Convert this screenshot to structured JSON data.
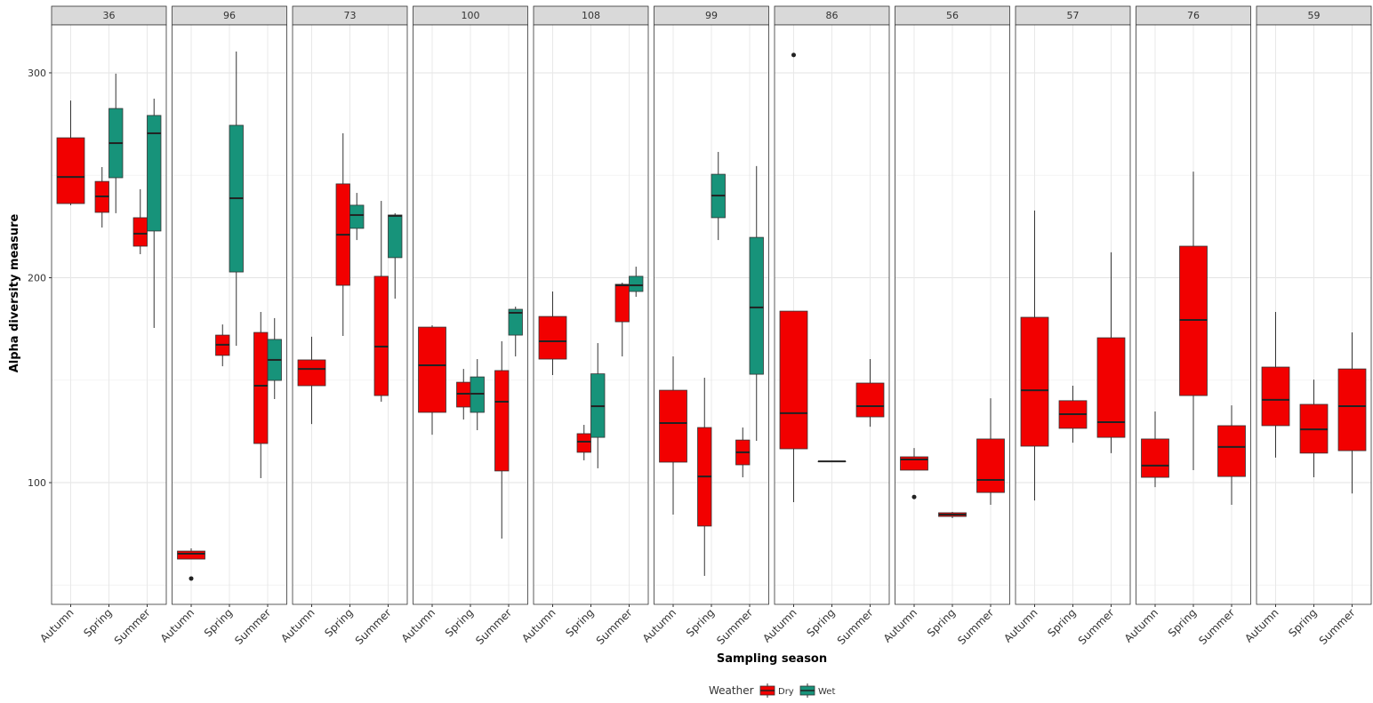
{
  "chart_data": {
    "type": "boxplot",
    "x_label": "Sampling season",
    "y_label": "Alpha diversity measure",
    "ylim": [
      40.6,
      323.4
    ],
    "yticks": [
      100,
      200,
      300
    ],
    "minor_yticks": [
      50,
      150,
      250
    ],
    "grid": true,
    "legend": {
      "title": "Weather",
      "position": "bottom",
      "series": [
        {
          "name": "Dry",
          "color": "#f20000"
        },
        {
          "name": "Wet",
          "color": "#17937a"
        }
      ]
    },
    "facets": [
      {
        "title": "36",
        "categories": [
          "Autumn",
          "Spring",
          "Summer"
        ],
        "boxes": [
          {
            "category": "Autumn",
            "weather": "Dry",
            "whisker_low": 235.4,
            "q1": 236.2,
            "median": 249.2,
            "q3": 268.3,
            "whisker_high": 286.5,
            "outliers": []
          },
          {
            "category": "Spring",
            "weather": "Dry",
            "whisker_low": 224.5,
            "q1": 231.9,
            "median": 239.7,
            "q3": 247,
            "whisker_high": 254,
            "outliers": []
          },
          {
            "category": "Spring",
            "weather": "Wet",
            "whisker_low": 231.5,
            "q1": 248.8,
            "median": 265.7,
            "q3": 282.6,
            "whisker_high": 299.6,
            "outliers": []
          },
          {
            "category": "Summer",
            "weather": "Dry",
            "whisker_low": 211.5,
            "q1": 215.4,
            "median": 221.5,
            "q3": 229.3,
            "whisker_high": 243.2,
            "outliers": []
          },
          {
            "category": "Summer",
            "weather": "Wet",
            "whisker_low": 175.5,
            "q1": 222.8,
            "median": 270.5,
            "q3": 279.2,
            "whisker_high": 287.4,
            "outliers": []
          }
        ]
      },
      {
        "title": "96",
        "categories": [
          "Autumn",
          "Spring",
          "Summer"
        ],
        "boxes": [
          {
            "category": "Autumn",
            "weather": "Dry",
            "whisker_low": 62.7,
            "q1": 62.7,
            "median": 65.3,
            "q3": 66.6,
            "whisker_high": 67.9,
            "outliers": [
              53.2
            ]
          },
          {
            "category": "Spring",
            "weather": "Dry",
            "whisker_low": 156.8,
            "q1": 162.1,
            "median": 167.3,
            "q3": 172,
            "whisker_high": 177.2,
            "outliers": []
          },
          {
            "category": "Spring",
            "weather": "Wet",
            "whisker_low": 166.8,
            "q1": 202.8,
            "median": 238.8,
            "q3": 274.4,
            "whisker_high": 310.4,
            "outliers": []
          },
          {
            "category": "Summer",
            "weather": "Dry",
            "whisker_low": 102.2,
            "q1": 119.1,
            "median": 147.3,
            "q3": 173.3,
            "whisker_high": 183.3,
            "outliers": []
          },
          {
            "category": "Summer",
            "weather": "Wet",
            "whisker_low": 140.8,
            "q1": 149.9,
            "median": 159.9,
            "q3": 169.9,
            "whisker_high": 180.3,
            "outliers": []
          }
        ]
      },
      {
        "title": "73",
        "categories": [
          "Autumn",
          "Spring",
          "Summer"
        ],
        "boxes": [
          {
            "category": "Autumn",
            "weather": "Dry",
            "whisker_low": 128.6,
            "q1": 147.3,
            "median": 155.5,
            "q3": 159.9,
            "whisker_high": 171.2,
            "outliers": []
          },
          {
            "category": "Spring",
            "weather": "Dry",
            "whisker_low": 171.6,
            "q1": 196.3,
            "median": 221,
            "q3": 245.8,
            "whisker_high": 270.5,
            "outliers": []
          },
          {
            "category": "Spring",
            "weather": "Wet",
            "whisker_low": 218.4,
            "q1": 224.1,
            "median": 230.6,
            "q3": 235.4,
            "whisker_high": 241.4,
            "outliers": []
          },
          {
            "category": "Summer",
            "weather": "Dry",
            "whisker_low": 139.5,
            "q1": 142.5,
            "median": 166.4,
            "q3": 200.7,
            "whisker_high": 237.5,
            "outliers": []
          },
          {
            "category": "Summer",
            "weather": "Wet",
            "whisker_low": 189.8,
            "q1": 209.8,
            "median": 230.2,
            "q3": 230.6,
            "whisker_high": 231.5,
            "outliers": []
          }
        ]
      },
      {
        "title": "100",
        "categories": [
          "Autumn",
          "Spring",
          "Summer"
        ],
        "boxes": [
          {
            "category": "Autumn",
            "weather": "Dry",
            "whisker_low": 123.4,
            "q1": 134.3,
            "median": 157.3,
            "q3": 175.9,
            "whisker_high": 176.8,
            "outliers": []
          },
          {
            "category": "Spring",
            "weather": "Dry",
            "whisker_low": 130.8,
            "q1": 136.9,
            "median": 143.4,
            "q3": 149,
            "whisker_high": 155.5,
            "outliers": []
          },
          {
            "category": "Spring",
            "weather": "Wet",
            "whisker_low": 125.6,
            "q1": 134.3,
            "median": 143.4,
            "q3": 151.6,
            "whisker_high": 160.3,
            "outliers": []
          },
          {
            "category": "Summer",
            "weather": "Dry",
            "whisker_low": 72.7,
            "q1": 105.7,
            "median": 139.5,
            "q3": 154.7,
            "whisker_high": 169,
            "outliers": []
          },
          {
            "category": "Summer",
            "weather": "Wet",
            "whisker_low": 161.6,
            "q1": 172,
            "median": 182.9,
            "q3": 184.6,
            "whisker_high": 185.9,
            "outliers": []
          }
        ]
      },
      {
        "title": "108",
        "categories": [
          "Autumn",
          "Spring",
          "Summer"
        ],
        "boxes": [
          {
            "category": "Autumn",
            "weather": "Dry",
            "whisker_low": 152.5,
            "q1": 160.3,
            "median": 169,
            "q3": 181.1,
            "whisker_high": 193.3,
            "outliers": []
          },
          {
            "category": "Spring",
            "weather": "Dry",
            "whisker_low": 110.9,
            "q1": 114.8,
            "median": 120,
            "q3": 123.9,
            "whisker_high": 128.2,
            "outliers": []
          },
          {
            "category": "Spring",
            "weather": "Wet",
            "whisker_low": 107,
            "q1": 122.1,
            "median": 137.3,
            "q3": 153.1,
            "whisker_high": 168.1,
            "outliers": []
          },
          {
            "category": "Summer",
            "weather": "Dry",
            "whisker_low": 161.6,
            "q1": 178.5,
            "median": 196.3,
            "q3": 196.8,
            "whisker_high": 197.6,
            "outliers": []
          },
          {
            "category": "Summer",
            "weather": "Wet",
            "whisker_low": 190.7,
            "q1": 193.3,
            "median": 196.3,
            "q3": 200.7,
            "whisker_high": 205.4,
            "outliers": []
          }
        ]
      },
      {
        "title": "99",
        "categories": [
          "Autumn",
          "Spring",
          "Summer"
        ],
        "boxes": [
          {
            "category": "Autumn",
            "weather": "Dry",
            "whisker_low": 84.4,
            "q1": 110,
            "median": 129.1,
            "q3": 145.1,
            "whisker_high": 161.6,
            "outliers": []
          },
          {
            "category": "Spring",
            "weather": "Dry",
            "whisker_low": 54.5,
            "q1": 78.8,
            "median": 103,
            "q3": 126.9,
            "whisker_high": 151.2,
            "outliers": []
          },
          {
            "category": "Spring",
            "weather": "Wet",
            "whisker_low": 218.4,
            "q1": 229.3,
            "median": 240.1,
            "q3": 250.5,
            "whisker_high": 261.4,
            "outliers": []
          },
          {
            "category": "Summer",
            "weather": "Dry",
            "whisker_low": 102.6,
            "q1": 108.7,
            "median": 114.8,
            "q3": 120.8,
            "whisker_high": 126.9,
            "outliers": []
          },
          {
            "category": "Summer",
            "weather": "Wet",
            "whisker_low": 120.4,
            "q1": 152.9,
            "median": 185.5,
            "q3": 219.7,
            "whisker_high": 254.5,
            "outliers": []
          }
        ]
      },
      {
        "title": "86",
        "categories": [
          "Autumn",
          "Spring",
          "Summer"
        ],
        "boxes": [
          {
            "category": "Autumn",
            "weather": "Dry",
            "whisker_low": 90.5,
            "q1": 116.5,
            "median": 133.9,
            "q3": 183.7,
            "whisker_high": 183.7,
            "outliers": [
              308.7
            ]
          },
          {
            "category": "Spring",
            "weather": "Dry",
            "whisker_low": 110.4,
            "q1": 110.4,
            "median": 110.4,
            "q3": 110.4,
            "whisker_high": 110.4,
            "outliers": []
          },
          {
            "category": "Summer",
            "weather": "Dry",
            "whisker_low": 127.3,
            "q1": 132.1,
            "median": 137.3,
            "q3": 148.6,
            "whisker_high": 160.3,
            "outliers": []
          }
        ]
      },
      {
        "title": "56",
        "categories": [
          "Autumn",
          "Spring",
          "Summer"
        ],
        "boxes": [
          {
            "category": "Autumn",
            "weather": "Dry",
            "whisker_low": 106.1,
            "q1": 106.1,
            "median": 111.3,
            "q3": 112.6,
            "whisker_high": 116.9,
            "outliers": [
              93
            ]
          },
          {
            "category": "Spring",
            "weather": "Dry",
            "whisker_low": 82.7,
            "q1": 83.5,
            "median": 84.4,
            "q3": 85.3,
            "whisker_high": 85.7,
            "outliers": []
          },
          {
            "category": "Summer",
            "weather": "Dry",
            "whisker_low": 89.2,
            "q1": 95.2,
            "median": 101.3,
            "q3": 121.3,
            "whisker_high": 141.2,
            "outliers": []
          }
        ]
      },
      {
        "title": "57",
        "categories": [
          "Autumn",
          "Spring",
          "Summer"
        ],
        "boxes": [
          {
            "category": "Autumn",
            "weather": "Dry",
            "whisker_low": 91.3,
            "q1": 117.8,
            "median": 145.1,
            "q3": 180.7,
            "whisker_high": 232.8,
            "outliers": []
          },
          {
            "category": "Spring",
            "weather": "Dry",
            "whisker_low": 119.5,
            "q1": 126.5,
            "median": 133.4,
            "q3": 140,
            "whisker_high": 147.3,
            "outliers": []
          },
          {
            "category": "Summer",
            "weather": "Dry",
            "whisker_low": 114.4,
            "q1": 122.1,
            "median": 129.5,
            "q3": 170.7,
            "whisker_high": 212.4,
            "outliers": []
          }
        ]
      },
      {
        "title": "76",
        "categories": [
          "Autumn",
          "Spring",
          "Summer"
        ],
        "boxes": [
          {
            "category": "Autumn",
            "weather": "Dry",
            "whisker_low": 97.8,
            "q1": 102.6,
            "median": 108.3,
            "q3": 121.3,
            "whisker_high": 134.7,
            "outliers": []
          },
          {
            "category": "Spring",
            "weather": "Dry",
            "whisker_low": 106.1,
            "q1": 142.5,
            "median": 179.4,
            "q3": 215.4,
            "whisker_high": 251.8,
            "outliers": []
          },
          {
            "category": "Summer",
            "weather": "Dry",
            "whisker_low": 89.2,
            "q1": 103,
            "median": 117.4,
            "q3": 127.8,
            "whisker_high": 137.7,
            "outliers": []
          }
        ]
      },
      {
        "title": "59",
        "categories": [
          "Autumn",
          "Spring",
          "Summer"
        ],
        "boxes": [
          {
            "category": "Autumn",
            "weather": "Dry",
            "whisker_low": 112.2,
            "q1": 127.8,
            "median": 140.4,
            "q3": 156.4,
            "whisker_high": 183.3,
            "outliers": []
          },
          {
            "category": "Spring",
            "weather": "Dry",
            "whisker_low": 102.6,
            "q1": 114.4,
            "median": 126,
            "q3": 138.2,
            "whisker_high": 150.3,
            "outliers": []
          },
          {
            "category": "Summer",
            "weather": "Dry",
            "whisker_low": 94.7,
            "q1": 115.6,
            "median": 137.3,
            "q3": 155.5,
            "whisker_high": 173.3,
            "outliers": []
          }
        ]
      }
    ]
  }
}
